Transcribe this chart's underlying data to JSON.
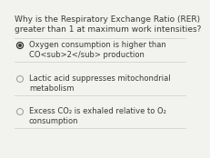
{
  "question_line1": "Why is the Respiratory Exchange Ratio (RER)",
  "question_line2": "greater than 1 at maximum work intensities?",
  "bg_color": "#f2f2ee",
  "text_color": "#3a3a3a",
  "q_fontsize": 6.5,
  "opt_fontsize": 6.0,
  "divider_color": "#cccccc",
  "radio_selected_edge": "#333333",
  "radio_selected_fill": "#333333",
  "radio_unselected_edge": "#999999",
  "options": [
    {
      "selected": true,
      "line1": "Oxygen consumption is higher than",
      "line2_raw": "CO<sub>2</sub> production"
    },
    {
      "selected": false,
      "line1": "Lactic acid suppresses mitochondrial",
      "line2_raw": "metabolism"
    },
    {
      "selected": false,
      "line1": "Excess CO₂ is exhaled relative to O₂",
      "line2_raw": "consumption"
    }
  ]
}
